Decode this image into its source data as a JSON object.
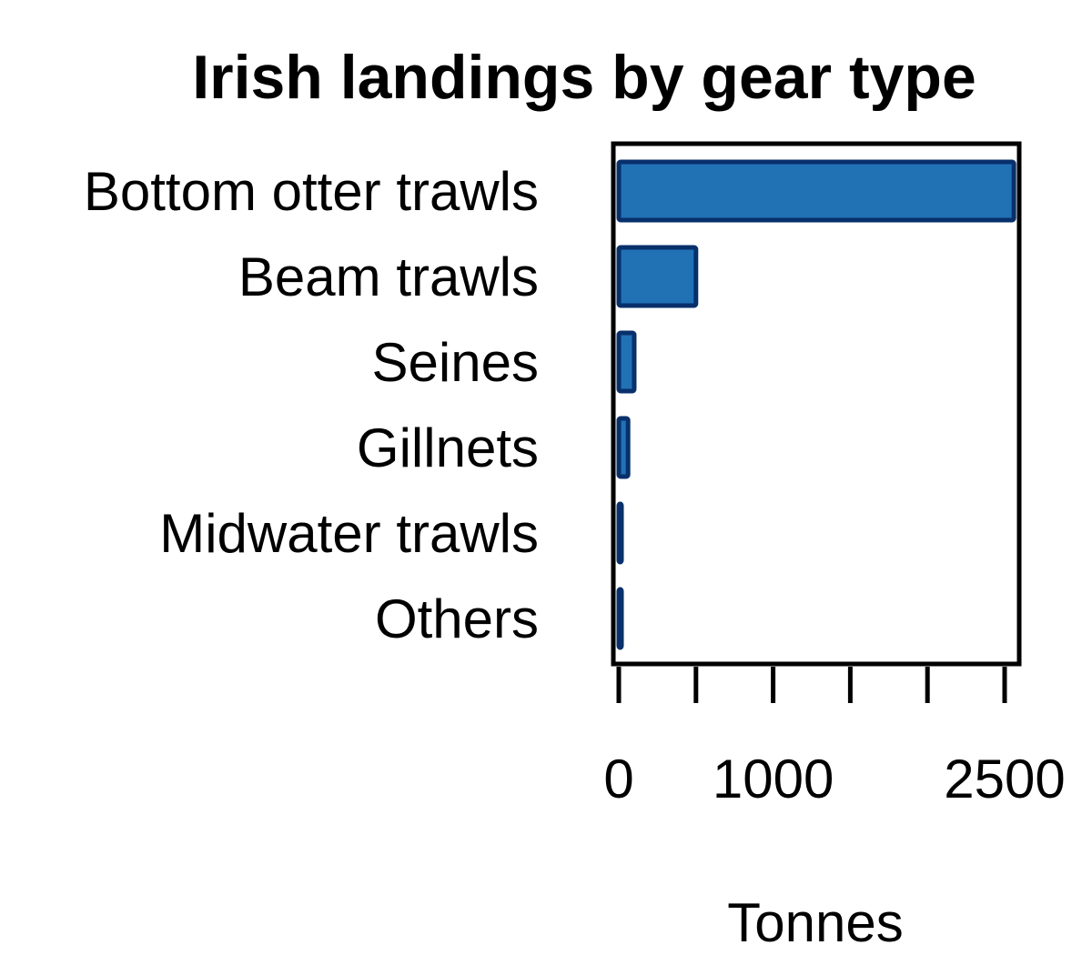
{
  "chart_data": {
    "type": "bar",
    "orientation": "horizontal",
    "title": "Irish landings by gear type",
    "xlabel": "Tonnes",
    "ylabel": "",
    "categories": [
      "Bottom otter trawls",
      "Beam trawls",
      "Seines",
      "Gillnets",
      "Midwater trawls",
      "Others"
    ],
    "values": [
      2560,
      500,
      100,
      60,
      15,
      10
    ],
    "xlim": [
      0,
      2500
    ],
    "xticks": [
      0,
      500,
      1000,
      1500,
      2000,
      2500
    ],
    "xtick_labels": [
      "0",
      "",
      "1000",
      "",
      "",
      "2500"
    ],
    "bar_fill": "#2171b5",
    "bar_stroke": "#08306b",
    "grid": false,
    "legend": "none"
  }
}
